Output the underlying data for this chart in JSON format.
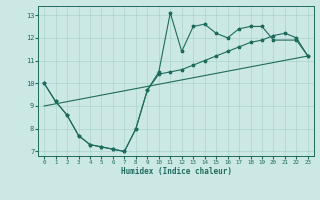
{
  "xlabel": "Humidex (Indice chaleur)",
  "bg_color": "#cce8e4",
  "line_color": "#1e6b5e",
  "grid_color": "#aad4cc",
  "xlim": [
    -0.5,
    23.5
  ],
  "ylim": [
    6.8,
    13.4
  ],
  "xticks": [
    0,
    1,
    2,
    3,
    4,
    5,
    6,
    7,
    8,
    9,
    10,
    11,
    12,
    13,
    14,
    15,
    16,
    17,
    18,
    19,
    20,
    21,
    22,
    23
  ],
  "yticks": [
    7,
    8,
    9,
    10,
    11,
    12,
    13
  ],
  "series0_x": [
    0,
    1,
    2,
    3,
    4,
    5,
    6,
    7,
    8,
    9,
    10,
    11,
    12,
    13,
    14,
    15,
    16,
    17,
    18,
    19,
    20,
    22,
    23
  ],
  "series0_y": [
    10.0,
    9.2,
    8.6,
    7.7,
    7.3,
    7.2,
    7.1,
    7.0,
    8.0,
    9.7,
    10.5,
    13.1,
    11.4,
    12.5,
    12.6,
    12.2,
    12.0,
    12.4,
    12.5,
    12.5,
    11.9,
    11.9,
    11.2
  ],
  "series1_x": [
    0,
    1,
    2,
    3,
    4,
    5,
    6,
    7,
    8,
    9,
    10,
    11,
    12,
    13,
    14,
    15,
    16,
    17,
    18,
    19,
    20,
    21,
    22,
    23
  ],
  "series1_y": [
    10.0,
    9.2,
    8.6,
    7.7,
    7.3,
    7.2,
    7.1,
    7.0,
    8.0,
    9.7,
    10.4,
    10.5,
    10.6,
    10.8,
    11.0,
    11.2,
    11.4,
    11.6,
    11.8,
    11.9,
    12.1,
    12.2,
    12.0,
    11.2
  ],
  "trend_x": [
    0,
    23
  ],
  "trend_y": [
    9.0,
    11.2
  ]
}
